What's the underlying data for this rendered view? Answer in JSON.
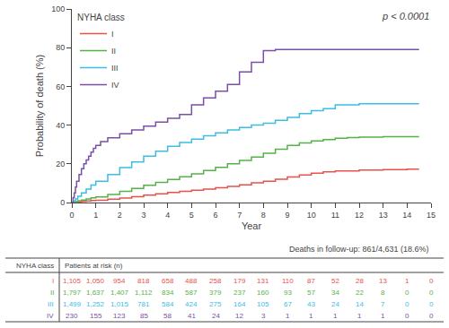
{
  "chart_data": {
    "type": "line",
    "line_style": "steps",
    "xlabel": "Year",
    "ylabel": "Probability of death (%)",
    "xlim": [
      0,
      15
    ],
    "ylim": [
      0,
      100
    ],
    "xticks": [
      0,
      1,
      2,
      3,
      4,
      5,
      6,
      7,
      8,
      9,
      10,
      11,
      12,
      13,
      14,
      15
    ],
    "yticks": [
      0,
      20,
      40,
      60,
      80,
      100
    ],
    "grid": false,
    "legend": "upper left",
    "legend_title": "NYHA class",
    "p_value_text": "p < 0.0001",
    "note": "Deaths in follow-up: 861/4,631 (18.6%)",
    "series": [
      {
        "name": "I",
        "color": "#e8524a",
        "x": [
          0,
          0.08,
          0.15,
          0.25,
          0.4,
          0.6,
          0.8,
          1.0,
          1.5,
          2.0,
          2.5,
          3.0,
          3.5,
          4.0,
          4.5,
          5.0,
          5.5,
          6.0,
          6.5,
          7.0,
          7.5,
          8.0,
          8.5,
          9.0,
          9.5,
          10.0,
          10.5,
          11.0,
          12.0,
          13.0,
          14.0,
          14.5
        ],
        "values": [
          0,
          0.1,
          0.2,
          0.4,
          0.6,
          0.8,
          1.0,
          1.2,
          1.7,
          2.3,
          3.0,
          3.8,
          4.5,
          5.2,
          5.8,
          6.4,
          7.0,
          7.6,
          8.3,
          9.2,
          10.2,
          11.0,
          12.0,
          13.2,
          14.2,
          15.2,
          15.8,
          16.3,
          16.8,
          17.0,
          17.2,
          17.2
        ]
      },
      {
        "name": "II",
        "color": "#54b347",
        "x": [
          0,
          0.08,
          0.15,
          0.25,
          0.4,
          0.6,
          0.8,
          1.0,
          1.5,
          2.0,
          2.5,
          3.0,
          3.5,
          4.0,
          4.5,
          5.0,
          5.5,
          6.0,
          6.5,
          7.0,
          7.5,
          8.0,
          8.5,
          9.0,
          9.5,
          10.0,
          10.5,
          11.0,
          11.5,
          12.0,
          13.0,
          14.0,
          14.5
        ],
        "values": [
          0,
          0.2,
          0.5,
          0.9,
          1.3,
          1.8,
          2.4,
          2.9,
          4.2,
          5.8,
          7.3,
          8.9,
          10.4,
          11.9,
          13.3,
          14.8,
          16.5,
          18.2,
          20.0,
          21.8,
          23.5,
          25.5,
          27.5,
          29.5,
          30.8,
          31.8,
          32.5,
          33.2,
          33.6,
          33.8,
          34.0,
          34.0,
          34.0
        ]
      },
      {
        "name": "III",
        "color": "#3dbde2",
        "x": [
          0,
          0.08,
          0.15,
          0.25,
          0.4,
          0.6,
          0.8,
          1.0,
          1.5,
          2.0,
          2.5,
          3.0,
          3.5,
          4.0,
          4.5,
          5.0,
          5.5,
          6.0,
          6.5,
          7.0,
          7.5,
          8.0,
          8.5,
          9.0,
          9.5,
          10.0,
          10.5,
          11.0,
          12.0,
          13.0,
          14.0,
          14.5
        ],
        "values": [
          0,
          0.8,
          1.8,
          3.2,
          5.0,
          7.0,
          9.0,
          11.0,
          14.5,
          18.0,
          21.0,
          24.0,
          26.5,
          29.0,
          31.0,
          32.8,
          34.5,
          36.0,
          37.5,
          38.8,
          40.0,
          41.0,
          42.5,
          44.0,
          46.0,
          47.5,
          48.5,
          50.5,
          51.0,
          51.0,
          51.0,
          51.0
        ]
      },
      {
        "name": "IV",
        "color": "#7b4fa6",
        "x": [
          0,
          0.05,
          0.1,
          0.15,
          0.2,
          0.3,
          0.4,
          0.5,
          0.6,
          0.7,
          0.8,
          0.9,
          1.0,
          1.2,
          1.5,
          2.0,
          2.5,
          3.0,
          3.5,
          4.0,
          4.5,
          5.0,
          5.5,
          6.0,
          6.5,
          7.0,
          7.5,
          8.0,
          8.5,
          9.0,
          10.0,
          11.0,
          12.0,
          13.0,
          14.0,
          14.5
        ],
        "values": [
          0,
          2.5,
          5.0,
          8.0,
          11.0,
          14.5,
          17.5,
          20.0,
          22.0,
          24.0,
          26.0,
          28.0,
          29.5,
          31.5,
          33.5,
          35.5,
          37.5,
          39.5,
          41.5,
          43.5,
          45.5,
          50.5,
          54.0,
          57.5,
          61.0,
          67.5,
          72.5,
          78.5,
          79.0,
          79.0,
          79.0,
          79.0,
          79.0,
          79.0,
          79.0,
          79.0
        ]
      }
    ],
    "risk_table": {
      "header_col1": "NYHA class",
      "header_col2": "Patients at risk (n)",
      "years": [
        0,
        1,
        2,
        3,
        4,
        5,
        6,
        7,
        8,
        9,
        10,
        11,
        12,
        13,
        14,
        15
      ],
      "rows": [
        {
          "name": "I",
          "color": "#e8524a",
          "values": [
            "1,105",
            "1,050",
            "954",
            "818",
            "658",
            "488",
            "258",
            "179",
            "131",
            "110",
            "87",
            "52",
            "28",
            "13",
            "1",
            "0"
          ]
        },
        {
          "name": "II",
          "color": "#54b347",
          "values": [
            "1,797",
            "1,637",
            "1,407",
            "1,112",
            "834",
            "587",
            "379",
            "237",
            "160",
            "93",
            "57",
            "34",
            "22",
            "8",
            "0",
            "0"
          ]
        },
        {
          "name": "III",
          "color": "#3dbde2",
          "values": [
            "1,499",
            "1,252",
            "1,015",
            "781",
            "584",
            "424",
            "275",
            "164",
            "105",
            "67",
            "43",
            "24",
            "14",
            "7",
            "0",
            "0"
          ]
        },
        {
          "name": "IV",
          "color": "#7b4fa6",
          "values": [
            "230",
            "155",
            "123",
            "85",
            "58",
            "41",
            "24",
            "12",
            "3",
            "1",
            "1",
            "1",
            "1",
            "1",
            "0",
            "0"
          ]
        }
      ]
    }
  }
}
